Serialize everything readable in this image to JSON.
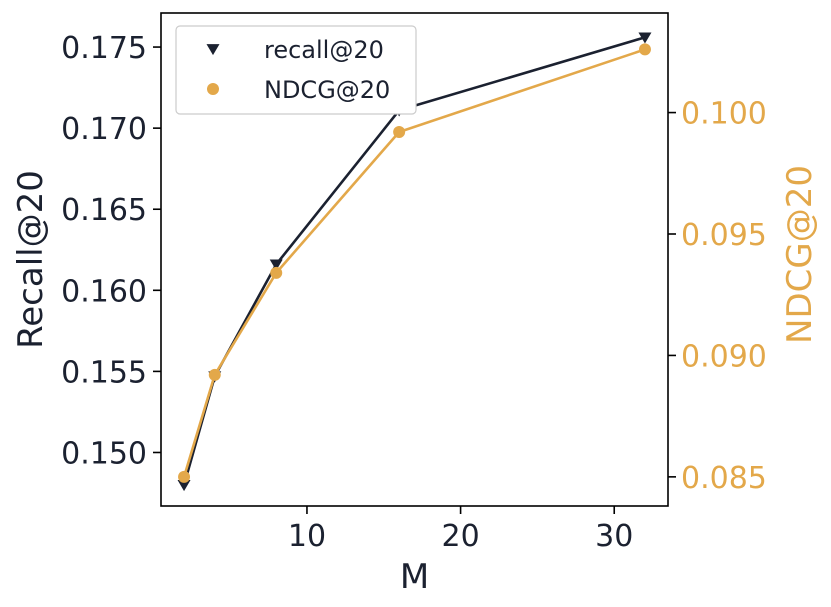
{
  "chart_data": {
    "type": "line",
    "x": [
      2,
      4,
      8,
      16,
      32
    ],
    "xlabel": "M",
    "xlim": [
      0.5,
      33.5
    ],
    "x_ticks": [
      10,
      20,
      30
    ],
    "y_left": {
      "label": "Recall@20",
      "lim": [
        0.1467,
        0.1771
      ],
      "ticks": [
        "0.150",
        "0.155",
        "0.160",
        "0.165",
        "0.170",
        "0.175"
      ],
      "color": "#1b2130"
    },
    "y_right": {
      "label": "NDCG@20",
      "lim": [
        0.0838,
        0.1041
      ],
      "ticks": [
        "0.085",
        "0.090",
        "0.095",
        "0.100"
      ],
      "color": "#e3a84a"
    },
    "series": [
      {
        "name": "recall@20",
        "axis": "left",
        "marker": "triangle-down",
        "color": "#1b2130",
        "values": [
          0.148,
          0.1547,
          0.1616,
          0.1711,
          0.1756
        ]
      },
      {
        "name": "NDCG@20",
        "axis": "right",
        "marker": "circle",
        "color": "#e3a84a",
        "values": [
          0.085,
          0.0892,
          0.0934,
          0.0992,
          0.1026
        ]
      }
    ],
    "legend": {
      "placement": "top-left"
    },
    "grid": false
  }
}
